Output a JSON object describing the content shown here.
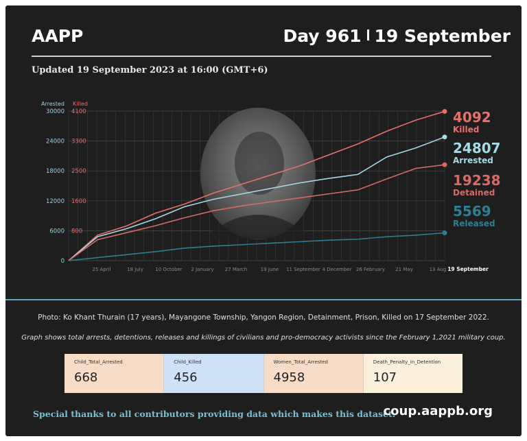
{
  "header": {
    "brand": "AAPP",
    "day": "Day 961",
    "date": "19 September",
    "updated": "Updated 19 September 2023 at 16:00 (GMT+6)"
  },
  "chart_data": {
    "type": "line",
    "left_axis": {
      "label": "Arrested",
      "ticks": [
        0,
        6000,
        12000,
        18000,
        24000,
        30000
      ],
      "ylim": [
        0,
        30000
      ]
    },
    "right_axis": {
      "label": "Killed",
      "ticks": [
        0,
        800,
        1600,
        2500,
        3300,
        4100
      ],
      "ylim": [
        0,
        4100
      ]
    },
    "x_ticks": [
      "25 April",
      "18 July",
      "10 October",
      "2 January",
      "27 March",
      "19 June",
      "11 September",
      "4 December",
      "26 February",
      "21 May",
      "13 Aug",
      "19 September"
    ],
    "grid": true,
    "series": [
      {
        "name": "Killed",
        "axis": "right",
        "color": "#e8706a",
        "last_value": "4092",
        "values": [
          0,
          700,
          950,
          1300,
          1550,
          1850,
          2100,
          2350,
          2600,
          2900,
          3200,
          3550,
          3850,
          4092
        ]
      },
      {
        "name": "Arrested",
        "axis": "left",
        "color": "#a6dbe6",
        "last_value": "24807",
        "values": [
          0,
          4800,
          6400,
          8400,
          10800,
          12300,
          13400,
          14500,
          15600,
          16500,
          17300,
          20800,
          22600,
          24807
        ]
      },
      {
        "name": "Detained",
        "axis": "left",
        "color": "#d66a64",
        "last_value": "19238",
        "values": [
          0,
          4200,
          5600,
          7000,
          8600,
          10000,
          11000,
          11800,
          12600,
          13400,
          14200,
          16400,
          18500,
          19238
        ]
      },
      {
        "name": "Released",
        "axis": "left",
        "color": "#2f7f92",
        "last_value": "5569",
        "values": [
          0,
          600,
          1200,
          1800,
          2500,
          2900,
          3200,
          3500,
          3800,
          4100,
          4300,
          4800,
          5100,
          5569
        ]
      }
    ]
  },
  "captions": {
    "photo": "Photo: Ko Khant Thurain (17 years), Mayangone Township, Yangon Region, Detainment, Prison, Killed on 17 September 2022.",
    "description": "Graph shows total arrests, detentions, releases and killings of civilians and pro-democracy activists since the February 1,2021 military coup."
  },
  "stats": [
    {
      "label": "Child_Total_Arrested",
      "value": "668",
      "color": "#f7dcc7"
    },
    {
      "label": "Child_Killed",
      "value": "456",
      "color": "#cfe1f7"
    },
    {
      "label": "Women_Total_Arrested",
      "value": "4958",
      "color": "#f7dcc7"
    },
    {
      "label": "Death_Penalty_in_Detention",
      "value": "107",
      "color": "#fbf0dc"
    }
  ],
  "footer": {
    "thanks": "Special thanks to all contributors providing data which makes this dataset.",
    "site": "coup.aappb.org"
  }
}
